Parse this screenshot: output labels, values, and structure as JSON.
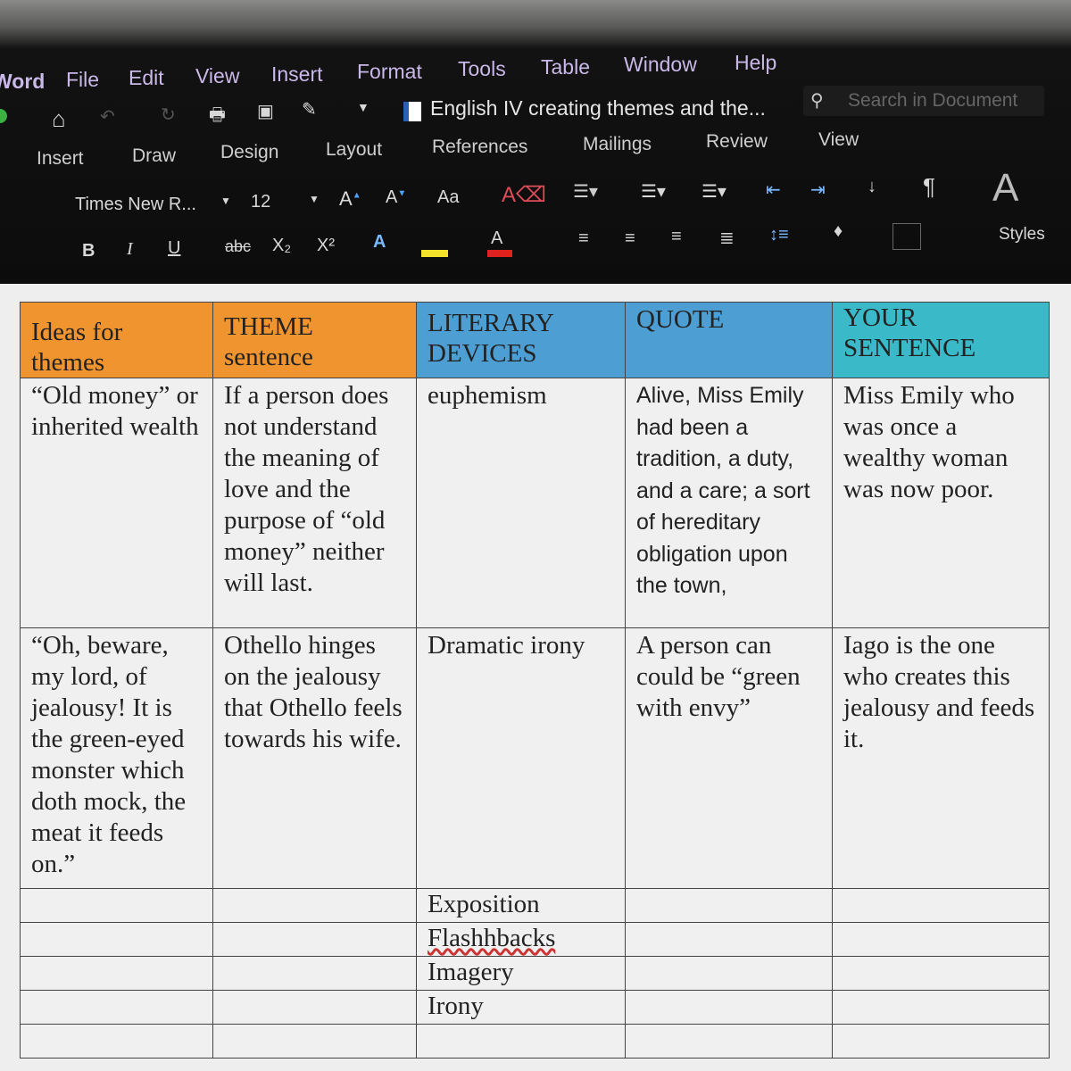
{
  "menu": [
    "Word",
    "File",
    "Edit",
    "View",
    "Insert",
    "Format",
    "Tools",
    "Table",
    "Window",
    "Help"
  ],
  "document_title": "English IV creating themes and the...",
  "search_placeholder": "Search in Document",
  "ribbon_tabs": [
    "Insert",
    "Draw",
    "Design",
    "Layout",
    "References",
    "Mailings",
    "Review",
    "View"
  ],
  "font_name": "Times New R...",
  "font_size": "12",
  "styles_label": "Styles",
  "format_buttons": {
    "bold": "B",
    "italic": "I",
    "underline": "U",
    "strike": "abc",
    "subscript": "X₂",
    "superscript": "X²"
  },
  "table": {
    "headers": [
      "Ideas for themes",
      "THEME sentence",
      "LITERARY DEVICES",
      "QUOTE",
      "YOUR SENTENCE"
    ],
    "header_colors": [
      "#f0942f",
      "#f0942f",
      "#4d9fd3",
      "#4d9fd3",
      "#3ab9c8"
    ],
    "rows": [
      [
        "“Old money” or inherited wealth",
        "If a person does not understand the meaning of love and the purpose of “old money” neither will last.",
        "euphemism",
        "Alive, Miss Emily had been a tradition, a duty, and a care; a sort of hereditary obligation upon the town,",
        "Miss Emily who was once a wealthy woman was now poor."
      ],
      [
        "“Oh, beware, my lord, of jealousy! It is the green-eyed monster which doth mock, the meat it feeds on.”",
        "Othello hinges on the jealousy that Othello feels towards his wife.",
        "Dramatic irony",
        "A person can could be “green with envy”",
        "Iago is the one who creates this jealousy and feeds it."
      ]
    ],
    "device_list": [
      "Exposition",
      "Flashhbacks",
      "Imagery",
      "Irony",
      ""
    ]
  }
}
